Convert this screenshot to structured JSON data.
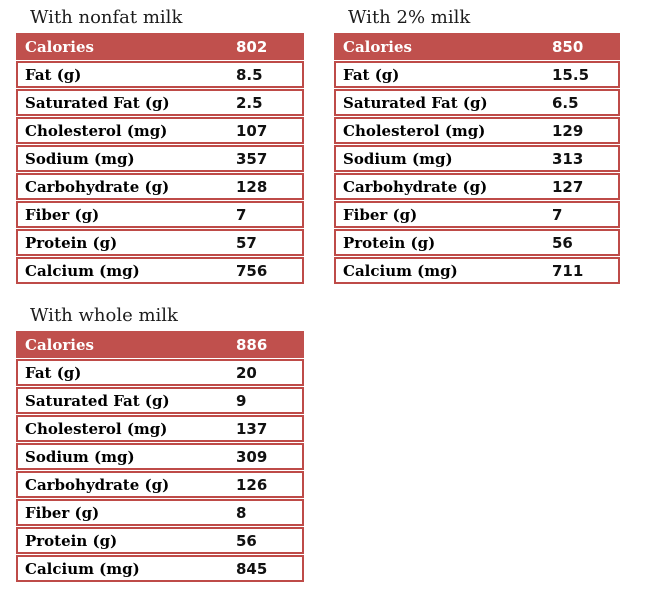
{
  "theme": {
    "header_bg": "#c0504d",
    "border_color": "#be4b48",
    "header_text_color": "#ffffff",
    "body_text_color": "#000000"
  },
  "tables": [
    {
      "title": "With nonfat milk",
      "header": {
        "label": "Calories",
        "value": "802"
      },
      "rows": [
        {
          "label": "Fat (g)",
          "value": "8.5"
        },
        {
          "label": "Saturated Fat (g)",
          "value": "2.5"
        },
        {
          "label": "Cholesterol (mg)",
          "value": "107"
        },
        {
          "label": "Sodium (mg)",
          "value": "357"
        },
        {
          "label": "Carbohydrate (g)",
          "value": "128"
        },
        {
          "label": "Fiber (g)",
          "value": "7"
        },
        {
          "label": "Protein (g)",
          "value": "57"
        },
        {
          "label": "Calcium (mg)",
          "value": "756"
        }
      ]
    },
    {
      "title": "With 2% milk",
      "header": {
        "label": "Calories",
        "value": "850"
      },
      "rows": [
        {
          "label": "Fat (g)",
          "value": "15.5"
        },
        {
          "label": "Saturated Fat (g)",
          "value": "6.5"
        },
        {
          "label": "Cholesterol (mg)",
          "value": "129"
        },
        {
          "label": "Sodium (mg)",
          "value": "313"
        },
        {
          "label": "Carbohydrate (g)",
          "value": "127"
        },
        {
          "label": "Fiber (g)",
          "value": "7"
        },
        {
          "label": "Protein (g)",
          "value": "56"
        },
        {
          "label": "Calcium (mg)",
          "value": "711"
        }
      ]
    },
    {
      "title": "With whole milk",
      "header": {
        "label": "Calories",
        "value": "886"
      },
      "rows": [
        {
          "label": "Fat (g)",
          "value": "20"
        },
        {
          "label": "Saturated Fat (g)",
          "value": "9"
        },
        {
          "label": "Cholesterol (mg)",
          "value": "137"
        },
        {
          "label": "Sodium (mg)",
          "value": "309"
        },
        {
          "label": "Carbohydrate (g)",
          "value": "126"
        },
        {
          "label": "Fiber (g)",
          "value": "8"
        },
        {
          "label": "Protein (g)",
          "value": "56"
        },
        {
          "label": "Calcium (mg)",
          "value": "845"
        }
      ]
    }
  ]
}
